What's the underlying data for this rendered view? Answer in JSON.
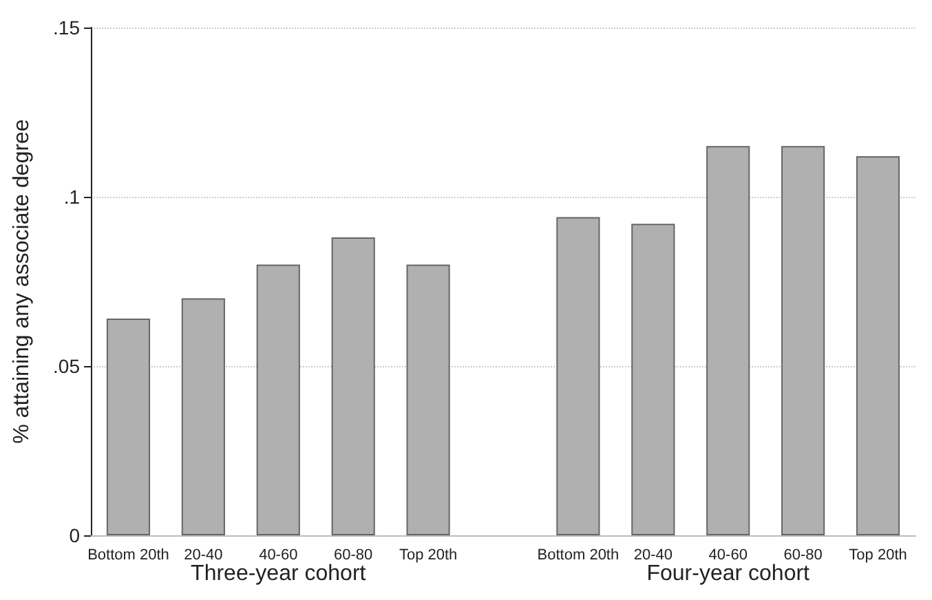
{
  "chart_data": {
    "type": "bar",
    "categories": [
      "Bottom 20th",
      "20-40",
      "40-60",
      "60-80",
      "Top 20th",
      null,
      "Bottom 20th",
      "20-40",
      "40-60",
      "60-80",
      "Top 20th"
    ],
    "values": [
      0.064,
      0.07,
      0.08,
      0.088,
      0.08,
      null,
      0.094,
      0.092,
      0.115,
      0.115,
      0.112
    ],
    "color": "#b0b0b0",
    "ylabel": "% attaining any associate degree",
    "ylim": [
      0,
      0.15
    ],
    "yticks": [
      {
        "value": 0,
        "label": "0"
      },
      {
        "value": 0.05,
        "label": ".05"
      },
      {
        "value": 0.1,
        "label": ".1"
      },
      {
        "value": 0.15,
        "label": ".15"
      }
    ],
    "annotations": [
      "Three-year cohort",
      "Four-year cohort"
    ],
    "grid": "y"
  }
}
